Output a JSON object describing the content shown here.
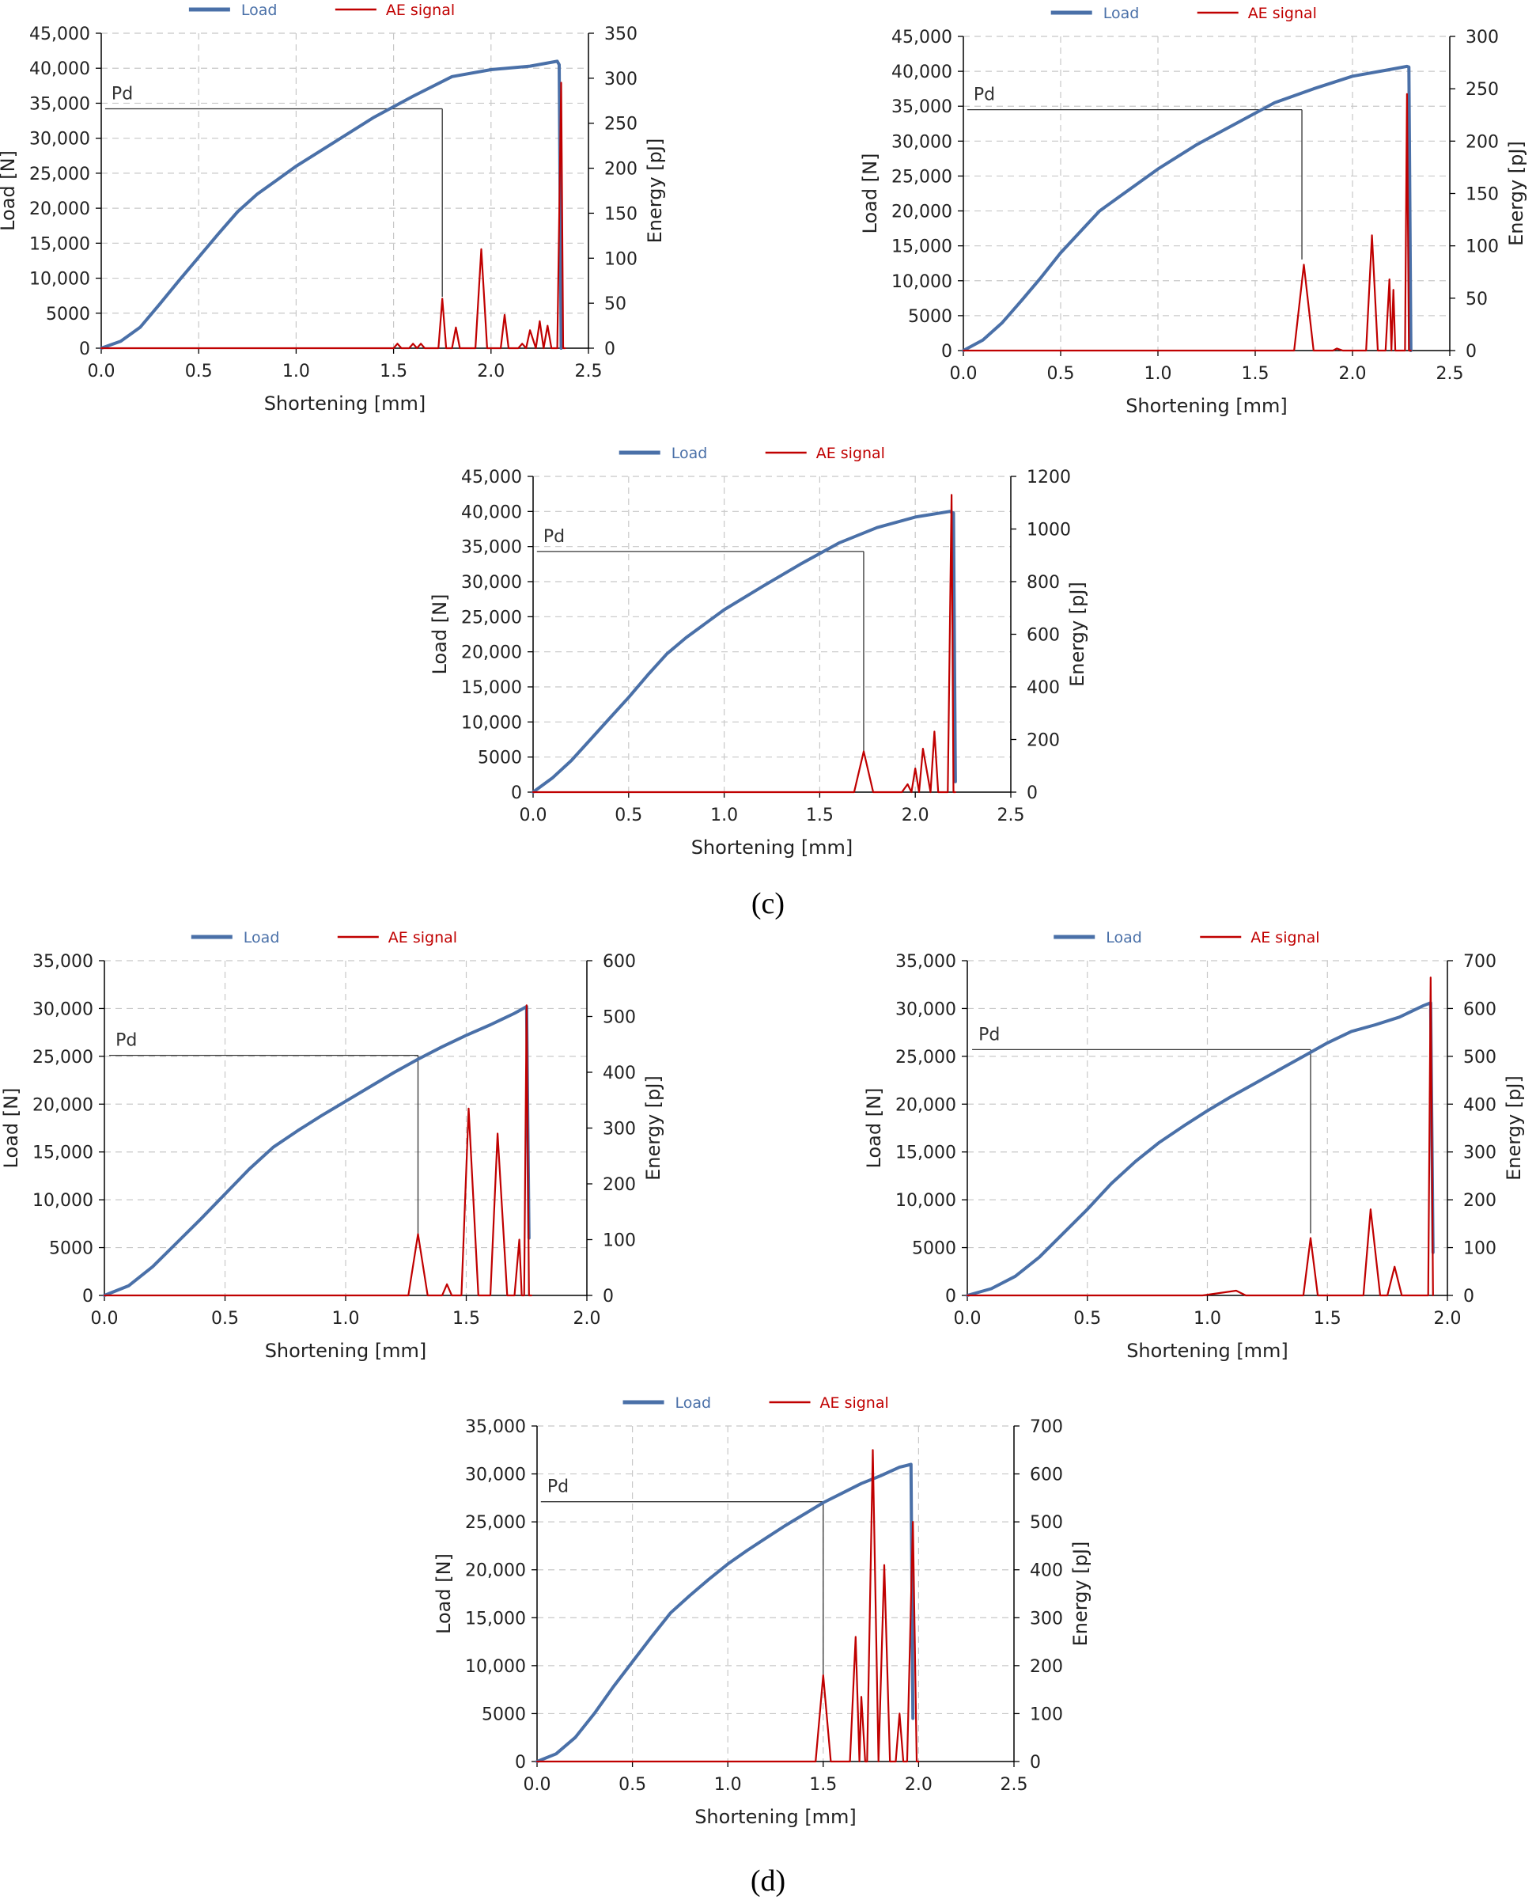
{
  "figure": {
    "panel_labels": [
      "(c)",
      "(d)"
    ],
    "colors": {
      "load": "#4a70a8",
      "ae": "#c00000",
      "grid": "#c8c8c8",
      "axis": "#000000",
      "pd_line": "#333333"
    }
  },
  "chart_data": [
    {
      "type": "line",
      "legend": [
        "Load",
        "AE signal"
      ],
      "xlabel": "Shortening [mm]",
      "ylabel": "Load [N]",
      "y2label": "Energy [pJ]",
      "xlim": [
        0,
        2.5
      ],
      "xticks": [
        "0.0",
        "0.5",
        "1.0",
        "1.5",
        "2.0",
        "2.5"
      ],
      "xstep": 0.5,
      "ylim": [
        0,
        45000
      ],
      "yticks": [
        "0",
        "5000",
        "10,000",
        "15,000",
        "20,000",
        "25,000",
        "30,000",
        "35,000",
        "40,000",
        "45,000"
      ],
      "ystep": 5000,
      "y2lim": [
        0,
        350
      ],
      "y2ticks": [
        "0",
        "50",
        "100",
        "150",
        "200",
        "250",
        "300",
        "350"
      ],
      "y2step": 50,
      "pd": {
        "label": "Pd",
        "x": 1.75,
        "load": 34200,
        "x_start": 0.02,
        "drop_to_energy": 57
      },
      "series": [
        {
          "name": "Load",
          "axis": "left",
          "x": [
            0,
            0.1,
            0.2,
            0.3,
            0.4,
            0.5,
            0.6,
            0.7,
            0.8,
            0.9,
            1.0,
            1.2,
            1.4,
            1.6,
            1.8,
            2.0,
            2.2,
            2.34,
            2.35,
            2.36
          ],
          "y": [
            0,
            1000,
            3000,
            6300,
            9700,
            13000,
            16300,
            19500,
            22000,
            24000,
            26000,
            29500,
            33000,
            36000,
            38800,
            39800,
            40300,
            41000,
            40500,
            0
          ]
        },
        {
          "name": "AE signal",
          "axis": "right",
          "x": [
            0,
            1.5,
            1.52,
            1.54,
            1.58,
            1.6,
            1.62,
            1.64,
            1.66,
            1.7,
            1.73,
            1.75,
            1.77,
            1.8,
            1.82,
            1.84,
            1.92,
            1.95,
            1.98,
            2.05,
            2.07,
            2.09,
            2.14,
            2.16,
            2.18,
            2.2,
            2.23,
            2.25,
            2.27,
            2.29,
            2.31,
            2.34,
            2.36,
            2.37,
            2.38
          ],
          "y": [
            0,
            0,
            5,
            0,
            0,
            5,
            0,
            5,
            0,
            0,
            0,
            55,
            0,
            0,
            23,
            0,
            0,
            110,
            0,
            0,
            37,
            0,
            0,
            5,
            0,
            20,
            0,
            30,
            0,
            25,
            0,
            0,
            295,
            0,
            0
          ]
        }
      ]
    },
    {
      "type": "line",
      "legend": [
        "Load",
        "AE signal"
      ],
      "xlabel": "Shortening [mm]",
      "ylabel": "Load [N]",
      "y2label": "Energy [pJ]",
      "xlim": [
        0,
        2.5
      ],
      "xticks": [
        "0.0",
        "0.5",
        "1.0",
        "1.5",
        "2.0",
        "2.5"
      ],
      "xstep": 0.5,
      "ylim": [
        0,
        45000
      ],
      "yticks": [
        "0",
        "5000",
        "10,000",
        "15,000",
        "20,000",
        "25,000",
        "30,000",
        "35,000",
        "40,000",
        "45,000"
      ],
      "ystep": 5000,
      "y2lim": [
        0,
        300
      ],
      "y2ticks": [
        "0",
        "50",
        "100",
        "150",
        "200",
        "250",
        "300"
      ],
      "y2step": 50,
      "pd": {
        "label": "Pd",
        "x": 1.74,
        "load": 34500,
        "x_start": 0.02,
        "drop_to_energy": 87
      },
      "series": [
        {
          "name": "Load",
          "axis": "left",
          "x": [
            0,
            0.1,
            0.2,
            0.3,
            0.4,
            0.5,
            0.6,
            0.7,
            0.8,
            0.9,
            1.0,
            1.2,
            1.4,
            1.6,
            1.8,
            2.0,
            2.2,
            2.28,
            2.29,
            2.3
          ],
          "y": [
            0,
            1500,
            4000,
            7200,
            10500,
            14000,
            17000,
            20000,
            22000,
            24000,
            26000,
            29500,
            32500,
            35500,
            37500,
            39300,
            40300,
            40700,
            40600,
            0
          ]
        },
        {
          "name": "AE signal",
          "axis": "right",
          "x": [
            0,
            1.7,
            1.75,
            1.8,
            1.9,
            1.92,
            1.95,
            2.07,
            2.1,
            2.13,
            2.17,
            2.19,
            2.2,
            2.21,
            2.22,
            2.25,
            2.27,
            2.28,
            2.29,
            2.3
          ],
          "y": [
            0,
            0,
            82,
            0,
            0,
            2,
            0,
            0,
            110,
            0,
            0,
            68,
            0,
            58,
            0,
            0,
            0,
            245,
            0,
            0
          ]
        }
      ]
    },
    {
      "type": "line",
      "legend": [
        "Load",
        "AE signal"
      ],
      "xlabel": "Shortening [mm]",
      "ylabel": "Load [N]",
      "y2label": "Energy [pJ]",
      "xlim": [
        0,
        2.5
      ],
      "xticks": [
        "0.0",
        "0.5",
        "1.0",
        "1.5",
        "2.0",
        "2.5"
      ],
      "xstep": 0.5,
      "ylim": [
        0,
        45000
      ],
      "yticks": [
        "0",
        "5000",
        "10,000",
        "15,000",
        "20,000",
        "25,000",
        "30,000",
        "35,000",
        "40,000",
        "45,000"
      ],
      "ystep": 5000,
      "y2lim": [
        0,
        1200
      ],
      "y2ticks": [
        "0",
        "200",
        "400",
        "600",
        "800",
        "1000",
        "1200"
      ],
      "y2step": 200,
      "pd": {
        "label": "Pd",
        "x": 1.73,
        "load": 34300,
        "x_start": 0.02,
        "drop_to_energy": 155
      },
      "series": [
        {
          "name": "Load",
          "axis": "left",
          "x": [
            0,
            0.1,
            0.2,
            0.3,
            0.4,
            0.5,
            0.6,
            0.7,
            0.8,
            0.9,
            1.0,
            1.2,
            1.4,
            1.6,
            1.8,
            2.0,
            2.18,
            2.2,
            2.21
          ],
          "y": [
            0,
            2000,
            4500,
            7500,
            10500,
            13500,
            16700,
            19700,
            22000,
            24000,
            26000,
            29300,
            32500,
            35500,
            37700,
            39200,
            40000,
            39800,
            1500
          ]
        },
        {
          "name": "AE signal",
          "axis": "right",
          "x": [
            0,
            1.68,
            1.73,
            1.78,
            1.93,
            1.96,
            1.98,
            2.0,
            2.02,
            2.04,
            2.08,
            2.1,
            2.12,
            2.17,
            2.19,
            2.2,
            2.21
          ],
          "y": [
            0,
            0,
            155,
            0,
            0,
            30,
            0,
            90,
            0,
            165,
            0,
            230,
            0,
            0,
            1130,
            0,
            0
          ]
        }
      ]
    },
    {
      "type": "line",
      "legend": [
        "Load",
        "AE signal"
      ],
      "xlabel": "Shortening [mm]",
      "ylabel": "Load [N]",
      "y2label": "Energy [pJ]",
      "xlim": [
        0,
        2.0
      ],
      "xticks": [
        "0.0",
        "0.5",
        "1.0",
        "1.5",
        "2.0"
      ],
      "xstep": 0.5,
      "ylim": [
        0,
        35000
      ],
      "yticks": [
        "0",
        "5000",
        "10,000",
        "15,000",
        "20,000",
        "25,000",
        "30,000",
        "35,000"
      ],
      "ystep": 5000,
      "y2lim": [
        0,
        600
      ],
      "y2ticks": [
        "0",
        "100",
        "200",
        "300",
        "400",
        "500",
        "600"
      ],
      "y2step": 100,
      "pd": {
        "label": "Pd",
        "x": 1.3,
        "load": 25100,
        "x_start": 0.02,
        "drop_to_energy": 110
      },
      "series": [
        {
          "name": "Load",
          "axis": "left",
          "x": [
            0,
            0.1,
            0.2,
            0.3,
            0.4,
            0.5,
            0.6,
            0.7,
            0.8,
            0.9,
            1.0,
            1.1,
            1.2,
            1.3,
            1.4,
            1.5,
            1.6,
            1.7,
            1.75,
            1.76
          ],
          "y": [
            0,
            1000,
            3000,
            5500,
            8000,
            10600,
            13200,
            15500,
            17200,
            18800,
            20300,
            21800,
            23300,
            24700,
            26000,
            27200,
            28300,
            29500,
            30200,
            6000
          ]
        },
        {
          "name": "AE signal",
          "axis": "right",
          "x": [
            0,
            1.26,
            1.3,
            1.34,
            1.4,
            1.42,
            1.44,
            1.48,
            1.51,
            1.55,
            1.6,
            1.63,
            1.67,
            1.7,
            1.72,
            1.73,
            1.74,
            1.75,
            1.76,
            1.77
          ],
          "y": [
            0,
            0,
            110,
            0,
            0,
            20,
            0,
            0,
            335,
            0,
            0,
            290,
            0,
            0,
            100,
            0,
            0,
            520,
            0,
            0
          ]
        }
      ]
    },
    {
      "type": "line",
      "legend": [
        "Load",
        "AE signal"
      ],
      "xlabel": "Shortening [mm]",
      "ylabel": "Load [N]",
      "y2label": "Energy [pJ]",
      "xlim": [
        0,
        2.0
      ],
      "xticks": [
        "0.0",
        "0.5",
        "1.0",
        "1.5",
        "2.0"
      ],
      "xstep": 0.5,
      "ylim": [
        0,
        35000
      ],
      "yticks": [
        "0",
        "5000",
        "10,000",
        "15,000",
        "20,000",
        "25,000",
        "30,000",
        "35,000"
      ],
      "ystep": 5000,
      "y2lim": [
        0,
        700
      ],
      "y2ticks": [
        "0",
        "100",
        "200",
        "300",
        "400",
        "500",
        "600",
        "700"
      ],
      "y2step": 100,
      "pd": {
        "label": "Pd",
        "x": 1.43,
        "load": 25700,
        "x_start": 0.02,
        "drop_to_energy": 130
      },
      "series": [
        {
          "name": "Load",
          "axis": "left",
          "x": [
            0,
            0.1,
            0.2,
            0.3,
            0.4,
            0.5,
            0.6,
            0.7,
            0.8,
            0.9,
            1.0,
            1.1,
            1.2,
            1.3,
            1.4,
            1.5,
            1.6,
            1.7,
            1.8,
            1.9,
            1.93,
            1.94
          ],
          "y": [
            0,
            700,
            2000,
            4000,
            6500,
            9000,
            11700,
            14000,
            16000,
            17700,
            19300,
            20800,
            22200,
            23600,
            25000,
            26400,
            27600,
            28300,
            29100,
            30300,
            30600,
            4500
          ]
        },
        {
          "name": "AE signal",
          "axis": "right",
          "x": [
            0,
            0.98,
            1.05,
            1.12,
            1.16,
            1.4,
            1.43,
            1.46,
            1.65,
            1.68,
            1.72,
            1.75,
            1.78,
            1.81,
            1.88,
            1.92,
            1.93,
            1.94
          ],
          "y": [
            0,
            0,
            5,
            10,
            0,
            0,
            120,
            0,
            0,
            180,
            0,
            0,
            60,
            0,
            0,
            0,
            665,
            0
          ]
        }
      ]
    },
    {
      "type": "line",
      "legend": [
        "Load",
        "AE signal"
      ],
      "xlabel": "Shortening [mm]",
      "ylabel": "Load [N]",
      "y2label": "Energy [pJ]",
      "xlim": [
        0,
        2.5
      ],
      "xticks": [
        "0.0",
        "0.5",
        "1.0",
        "1.5",
        "2.0",
        "2.5"
      ],
      "xstep": 0.5,
      "ylim": [
        0,
        35000
      ],
      "yticks": [
        "0",
        "5000",
        "10,000",
        "15,000",
        "20,000",
        "25,000",
        "30,000",
        "35,000"
      ],
      "ystep": 5000,
      "y2lim": [
        0,
        700
      ],
      "y2ticks": [
        "0",
        "100",
        "200",
        "300",
        "400",
        "500",
        "600",
        "700"
      ],
      "y2step": 100,
      "pd": {
        "label": "Pd",
        "x": 1.5,
        "load": 27100,
        "x_start": 0.02,
        "drop_to_energy": 180
      },
      "series": [
        {
          "name": "Load",
          "axis": "left",
          "x": [
            0,
            0.1,
            0.2,
            0.3,
            0.4,
            0.5,
            0.6,
            0.7,
            0.8,
            0.9,
            1.0,
            1.1,
            1.2,
            1.3,
            1.4,
            1.5,
            1.6,
            1.7,
            1.8,
            1.9,
            1.96,
            1.97
          ],
          "y": [
            0,
            800,
            2500,
            5000,
            7800,
            10400,
            13000,
            15500,
            17300,
            19000,
            20600,
            22000,
            23300,
            24600,
            25800,
            27000,
            28000,
            29000,
            29800,
            30700,
            31000,
            4500
          ]
        },
        {
          "name": "AE signal",
          "axis": "right",
          "x": [
            0,
            1.46,
            1.5,
            1.54,
            1.64,
            1.67,
            1.69,
            1.7,
            1.72,
            1.73,
            1.76,
            1.79,
            1.82,
            1.85,
            1.88,
            1.9,
            1.92,
            1.94,
            1.97,
            1.99,
            2.0
          ],
          "y": [
            0,
            0,
            180,
            0,
            0,
            260,
            0,
            135,
            0,
            0,
            650,
            0,
            410,
            0,
            0,
            100,
            0,
            0,
            500,
            0,
            0
          ]
        }
      ]
    }
  ]
}
